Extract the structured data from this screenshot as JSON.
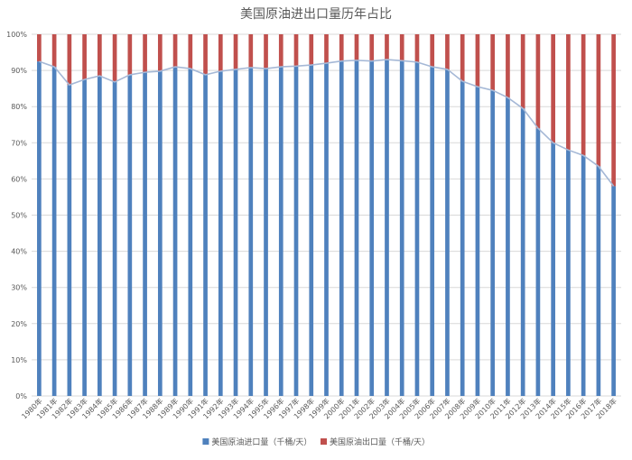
{
  "chart_data": {
    "type": "bar",
    "stacked": true,
    "percent": true,
    "title": "美国原油进出口量历年占比",
    "categories": [
      "1980年",
      "1981年",
      "1982年",
      "1983年",
      "1984年",
      "1985年",
      "1986年",
      "1987年",
      "1988年",
      "1989年",
      "1990年",
      "1991年",
      "1992年",
      "1993年",
      "1994年",
      "1995年",
      "1996年",
      "1997年",
      "1998年",
      "1999年",
      "2000年",
      "2001年",
      "2002年",
      "2003年",
      "2004年",
      "2005年",
      "2006年",
      "2007年",
      "2008年",
      "2009年",
      "2010年",
      "2011年",
      "2012年",
      "2013年",
      "2014年",
      "2015年",
      "2016年",
      "2017年",
      "2018年"
    ],
    "series": [
      {
        "name": "美国原油进口量（千桶/天）",
        "color": "#4f81bd",
        "values": [
          92.5,
          91.0,
          86.0,
          87.5,
          88.5,
          86.8,
          88.8,
          89.5,
          89.8,
          91.0,
          90.5,
          88.8,
          89.8,
          90.3,
          90.8,
          90.5,
          91.0,
          91.2,
          91.5,
          92.0,
          92.6,
          92.8,
          92.6,
          93.0,
          92.7,
          92.3,
          91.0,
          90.3,
          87.0,
          85.5,
          84.5,
          82.5,
          79.5,
          74.0,
          70.0,
          68.0,
          66.5,
          63.5,
          58.0
        ]
      },
      {
        "name": "美国原油出口量（千桶/天）",
        "color": "#c0504d",
        "values": [
          7.5,
          9.0,
          14.0,
          12.5,
          11.5,
          13.2,
          11.2,
          10.5,
          10.2,
          9.0,
          9.5,
          11.2,
          10.2,
          9.7,
          9.2,
          9.5,
          9.0,
          8.8,
          8.5,
          8.0,
          7.4,
          7.2,
          7.4,
          7.0,
          7.3,
          7.7,
          9.0,
          9.7,
          13.0,
          14.5,
          15.5,
          17.5,
          20.5,
          26.0,
          30.0,
          32.0,
          33.5,
          36.5,
          42.0
        ]
      }
    ],
    "yticks": [
      "0%",
      "10%",
      "20%",
      "30%",
      "40%",
      "50%",
      "60%",
      "70%",
      "80%",
      "90%",
      "100%"
    ],
    "ylim": [
      0,
      100
    ],
    "grid": true,
    "legend": "bottom",
    "trendline_on_series": 0
  }
}
